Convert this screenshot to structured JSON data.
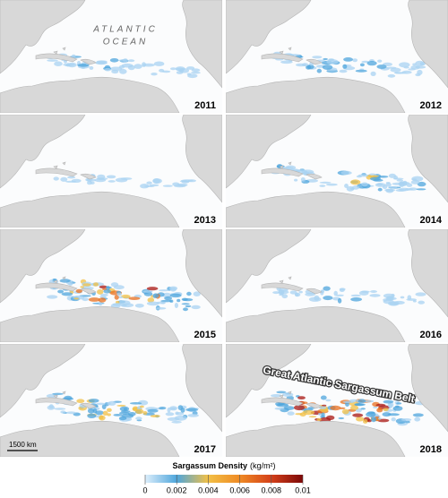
{
  "map": {
    "ocean_label": [
      "ATLANTIC",
      "OCEAN"
    ],
    "panels": [
      {
        "year": "2011"
      },
      {
        "year": "2012"
      },
      {
        "year": "2013"
      },
      {
        "year": "2014"
      },
      {
        "year": "2015"
      },
      {
        "year": "2016"
      },
      {
        "year": "2017"
      },
      {
        "year": "2018"
      }
    ],
    "belt_label": "Great Atlantic Sargassum Belt",
    "scale_bar": "1500 km",
    "colorbar": {
      "title": "Sargassum Density",
      "unit": "(kg/m²)",
      "range": [
        0,
        0.01
      ],
      "ticks": [
        0,
        0.002,
        0.004,
        0.006,
        0.008,
        0.01
      ]
    }
  }
}
